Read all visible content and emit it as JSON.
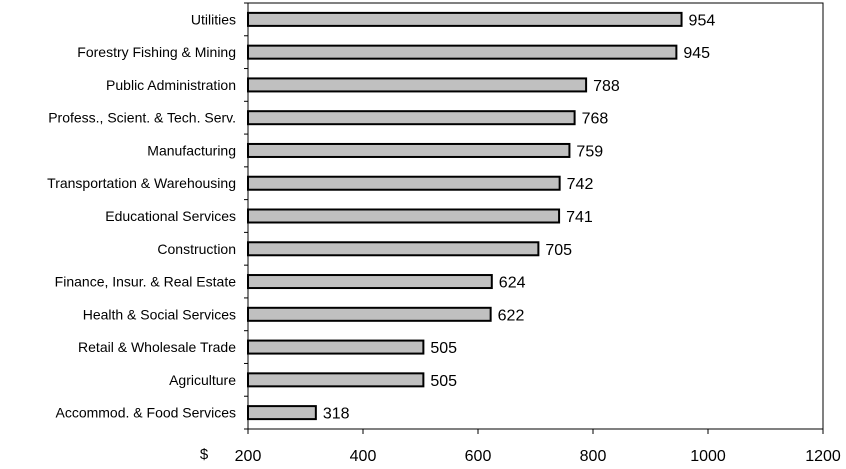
{
  "chart_data": {
    "type": "bar",
    "orientation": "horizontal",
    "categories": [
      "Utilities",
      "Forestry Fishing & Mining",
      "Public Administration",
      "Profess., Scient. & Tech. Serv.",
      "Manufacturing",
      "Transportation & Warehousing",
      "Educational Services",
      "Construction",
      "Finance, Insur. & Real Estate",
      "Health & Social Services",
      "Retail & Wholesale Trade",
      "Agriculture",
      "Accommod. & Food Services"
    ],
    "values": [
      954,
      945,
      788,
      768,
      759,
      742,
      741,
      705,
      624,
      622,
      505,
      505,
      318
    ],
    "value_labels": [
      "954",
      "945",
      "788",
      "768",
      "759",
      "742",
      "741",
      "705",
      "624",
      "622",
      "505",
      "505",
      "318"
    ],
    "xlim": [
      200,
      1200
    ],
    "xticks": [
      "200",
      "400",
      "600",
      "800",
      "1000",
      "1200"
    ],
    "xlabel": "$",
    "title": "",
    "ylabel": "",
    "grid": false,
    "legend": "none",
    "bar_color": "#c0c0c0",
    "bar_edge_color": "#000000"
  }
}
